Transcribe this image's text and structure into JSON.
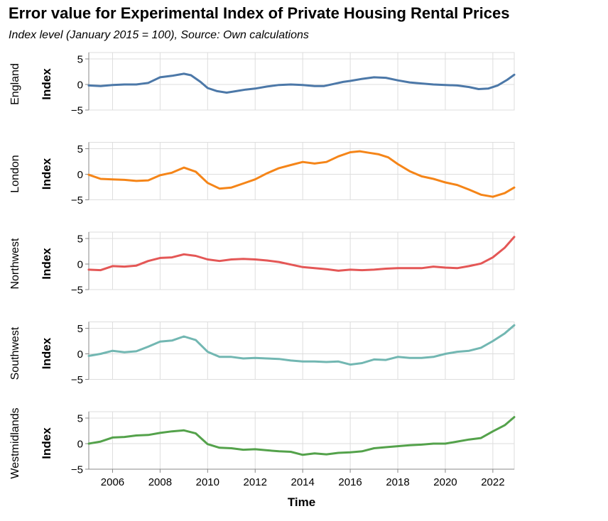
{
  "chart_data": {
    "type": "line",
    "title": "Error value for Experimental Index of Private Housing Rental Prices",
    "subtitle": "Index level (January 2015 = 100), Source: Own calculations",
    "xlabel": "Time",
    "ylabel": "Index",
    "xlim": [
      2005.0,
      2022.9
    ],
    "ylim": [
      -5,
      5
    ],
    "x_ticks": [
      2006,
      2008,
      2010,
      2012,
      2014,
      2016,
      2018,
      2020,
      2022
    ],
    "y_ticks": [
      -5,
      0,
      5
    ],
    "grid": true,
    "facets": "rows",
    "series": [
      {
        "name": "England",
        "color": "#4c78a8",
        "x": [
          2005.0,
          2005.5,
          2006.0,
          2006.5,
          2007.0,
          2007.5,
          2008.0,
          2008.5,
          2009.0,
          2009.3,
          2009.7,
          2010.0,
          2010.4,
          2010.8,
          2011.2,
          2011.6,
          2012.0,
          2012.5,
          2013.0,
          2013.5,
          2014.0,
          2014.5,
          2014.9,
          2015.3,
          2015.7,
          2016.0,
          2016.5,
          2017.0,
          2017.5,
          2018.0,
          2018.5,
          2019.0,
          2019.5,
          2020.0,
          2020.5,
          2021.0,
          2021.4,
          2021.8,
          2022.2,
          2022.6,
          2022.9
        ],
        "values": [
          -0.2,
          -0.3,
          -0.1,
          0.0,
          0.0,
          0.3,
          1.4,
          1.7,
          2.1,
          1.8,
          0.5,
          -0.7,
          -1.3,
          -1.6,
          -1.3,
          -1.0,
          -0.8,
          -0.4,
          -0.1,
          0.0,
          -0.1,
          -0.3,
          -0.3,
          0.1,
          0.5,
          0.7,
          1.1,
          1.4,
          1.3,
          0.8,
          0.4,
          0.2,
          0.0,
          -0.1,
          -0.2,
          -0.5,
          -0.9,
          -0.8,
          -0.2,
          0.9,
          1.9
        ]
      },
      {
        "name": "London",
        "color": "#f58518",
        "x": [
          2005.0,
          2005.5,
          2006.0,
          2006.5,
          2007.0,
          2007.5,
          2008.0,
          2008.5,
          2009.0,
          2009.5,
          2010.0,
          2010.5,
          2011.0,
          2011.5,
          2012.0,
          2012.5,
          2013.0,
          2013.5,
          2014.0,
          2014.5,
          2015.0,
          2015.5,
          2016.0,
          2016.4,
          2016.8,
          2017.2,
          2017.6,
          2018.0,
          2018.5,
          2019.0,
          2019.5,
          2020.0,
          2020.5,
          2021.0,
          2021.5,
          2022.0,
          2022.5,
          2022.9
        ],
        "values": [
          -0.1,
          -0.9,
          -1.0,
          -1.1,
          -1.3,
          -1.2,
          -0.2,
          0.3,
          1.3,
          0.5,
          -1.7,
          -2.8,
          -2.6,
          -1.8,
          -1.0,
          0.2,
          1.2,
          1.8,
          2.4,
          2.1,
          2.4,
          3.5,
          4.3,
          4.5,
          4.2,
          3.9,
          3.3,
          2.0,
          0.6,
          -0.4,
          -0.9,
          -1.6,
          -2.1,
          -3.0,
          -4.0,
          -4.4,
          -3.7,
          -2.6
        ]
      },
      {
        "name": "Northwest",
        "color": "#e45756",
        "x": [
          2005.0,
          2005.5,
          2006.0,
          2006.5,
          2007.0,
          2007.5,
          2008.0,
          2008.5,
          2009.0,
          2009.5,
          2010.0,
          2010.5,
          2011.0,
          2011.5,
          2012.0,
          2012.5,
          2013.0,
          2013.5,
          2014.0,
          2014.5,
          2015.0,
          2015.5,
          2016.0,
          2016.5,
          2017.0,
          2017.5,
          2018.0,
          2018.5,
          2019.0,
          2019.5,
          2020.0,
          2020.5,
          2021.0,
          2021.5,
          2022.0,
          2022.5,
          2022.9
        ],
        "values": [
          -1.1,
          -1.2,
          -0.4,
          -0.5,
          -0.3,
          0.6,
          1.2,
          1.3,
          1.9,
          1.6,
          0.9,
          0.6,
          0.9,
          1.0,
          0.9,
          0.7,
          0.4,
          -0.1,
          -0.6,
          -0.8,
          -1.0,
          -1.3,
          -1.1,
          -1.2,
          -1.1,
          -0.9,
          -0.8,
          -0.8,
          -0.8,
          -0.5,
          -0.7,
          -0.8,
          -0.4,
          0.1,
          1.3,
          3.2,
          5.3
        ]
      },
      {
        "name": "Southwest",
        "color": "#72b7b2",
        "x": [
          2005.0,
          2005.5,
          2006.0,
          2006.5,
          2007.0,
          2007.5,
          2008.0,
          2008.5,
          2009.0,
          2009.5,
          2010.0,
          2010.5,
          2011.0,
          2011.5,
          2012.0,
          2012.5,
          2013.0,
          2013.5,
          2014.0,
          2014.5,
          2015.0,
          2015.5,
          2016.0,
          2016.5,
          2017.0,
          2017.5,
          2018.0,
          2018.5,
          2019.0,
          2019.5,
          2020.0,
          2020.5,
          2021.0,
          2021.5,
          2022.0,
          2022.5,
          2022.9
        ],
        "values": [
          -0.4,
          0.0,
          0.6,
          0.3,
          0.5,
          1.4,
          2.4,
          2.6,
          3.4,
          2.7,
          0.4,
          -0.6,
          -0.6,
          -0.9,
          -0.8,
          -0.9,
          -1.0,
          -1.3,
          -1.5,
          -1.5,
          -1.6,
          -1.5,
          -2.1,
          -1.8,
          -1.1,
          -1.2,
          -0.6,
          -0.8,
          -0.8,
          -0.6,
          0.0,
          0.4,
          0.6,
          1.2,
          2.5,
          4.0,
          5.6
        ]
      },
      {
        "name": "Westmidlands",
        "color": "#54a24b",
        "x": [
          2005.0,
          2005.5,
          2006.0,
          2006.5,
          2007.0,
          2007.5,
          2008.0,
          2008.5,
          2009.0,
          2009.5,
          2010.0,
          2010.5,
          2011.0,
          2011.5,
          2012.0,
          2012.5,
          2013.0,
          2013.5,
          2014.0,
          2014.5,
          2015.0,
          2015.5,
          2016.0,
          2016.5,
          2017.0,
          2017.5,
          2018.0,
          2018.5,
          2019.0,
          2019.5,
          2020.0,
          2020.5,
          2021.0,
          2021.5,
          2022.0,
          2022.5,
          2022.9
        ],
        "values": [
          0.0,
          0.4,
          1.2,
          1.3,
          1.6,
          1.7,
          2.1,
          2.4,
          2.6,
          2.0,
          -0.1,
          -0.8,
          -0.9,
          -1.2,
          -1.1,
          -1.3,
          -1.5,
          -1.6,
          -2.2,
          -1.9,
          -2.1,
          -1.8,
          -1.7,
          -1.5,
          -0.9,
          -0.7,
          -0.5,
          -0.3,
          -0.2,
          0.0,
          0.0,
          0.4,
          0.8,
          1.1,
          2.4,
          3.6,
          5.2
        ]
      }
    ]
  }
}
